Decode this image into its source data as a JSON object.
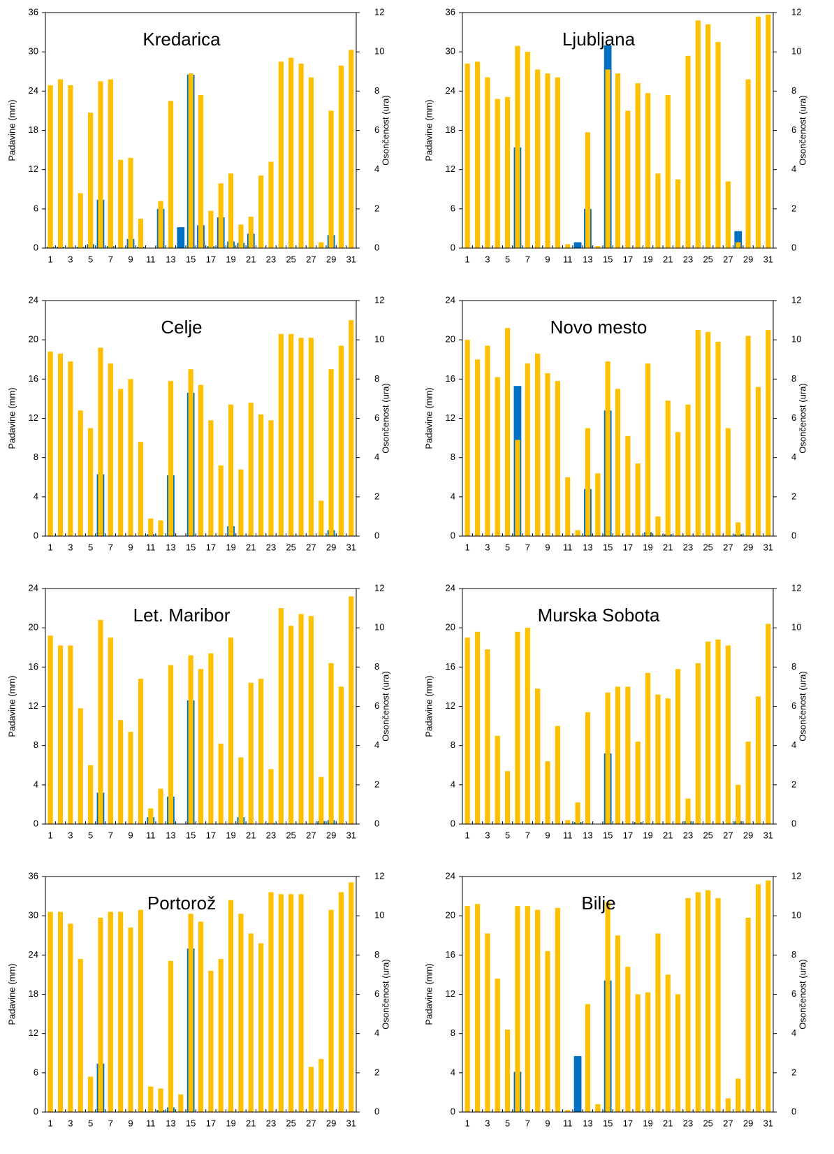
{
  "chart_data": [
    {
      "type": "bar",
      "title": "Kredarica",
      "ylabel": "Padavine (mm)",
      "y2label": "Osončenost (ura)",
      "categories": [
        1,
        null,
        3,
        null,
        5,
        null,
        7,
        null,
        9,
        null,
        11,
        null,
        13,
        null,
        15,
        null,
        17,
        null,
        19,
        null,
        21,
        null,
        23,
        null,
        25,
        null,
        27,
        null,
        29,
        null,
        31
      ],
      "ylim": [
        0,
        36
      ],
      "yticks": [
        0,
        6,
        12,
        18,
        24,
        30,
        36
      ],
      "y2lim": [
        0,
        12
      ],
      "y2ticks": [
        0,
        2,
        4,
        6,
        8,
        10,
        12
      ],
      "series": [
        {
          "color": "#0070c0",
          "values": [
            0.2,
            0.2,
            0.1,
            0.2,
            0.6,
            7.4,
            0.3,
            0,
            1.4,
            0.2,
            0,
            6,
            0,
            3.2,
            26.5,
            3.5,
            0.3,
            4.7,
            1,
            0.8,
            2.2,
            0,
            0,
            0,
            0,
            0,
            0,
            0,
            2,
            0,
            0
          ]
        },
        {
          "color": "#ffc000",
          "axis": "y2",
          "values": [
            8.3,
            8.6,
            8.3,
            2.8,
            6.9,
            8.5,
            8.6,
            4.5,
            4.6,
            1.5,
            0,
            2.4,
            7.5,
            0,
            8.9,
            7.8,
            1.9,
            3.3,
            3.8,
            1.2,
            1.6,
            3.7,
            4.4,
            9.5,
            9.7,
            9.4,
            8.7,
            0.3,
            7,
            9.3,
            10.1
          ]
        }
      ]
    },
    {
      "type": "bar",
      "title": "Ljubljana",
      "ylabel": "Padavine (mm)",
      "y2label": "Osončenost (ura)",
      "categories": [
        1,
        null,
        3,
        null,
        5,
        null,
        7,
        null,
        9,
        null,
        11,
        null,
        13,
        null,
        15,
        null,
        17,
        null,
        19,
        null,
        21,
        null,
        23,
        null,
        25,
        null,
        27,
        null,
        29,
        null,
        31
      ],
      "ylim": [
        0,
        36
      ],
      "yticks": [
        0,
        6,
        12,
        18,
        24,
        30,
        36
      ],
      "y2lim": [
        0,
        12
      ],
      "y2ticks": [
        0,
        2,
        4,
        6,
        8,
        10,
        12
      ],
      "series": [
        {
          "color": "#0070c0",
          "values": [
            0,
            0,
            0,
            0,
            0,
            15.4,
            0,
            0,
            0,
            0,
            0,
            0.9,
            6,
            0,
            31,
            0,
            0,
            0,
            0,
            0,
            0,
            0,
            0,
            0,
            0,
            0,
            0,
            2.6,
            0,
            0,
            0
          ]
        },
        {
          "color": "#ffc000",
          "axis": "y2",
          "values": [
            9.4,
            9.5,
            8.7,
            7.6,
            7.7,
            10.3,
            10,
            9.1,
            8.9,
            8.7,
            0.2,
            0,
            5.9,
            0.1,
            9.1,
            8.9,
            7,
            8.4,
            7.9,
            3.8,
            7.8,
            3.5,
            9.8,
            11.6,
            11.4,
            10.5,
            3.4,
            0.3,
            8.6,
            11.8,
            11.9
          ]
        }
      ]
    },
    {
      "type": "bar",
      "title": "Celje",
      "ylabel": "Padavine (mm)",
      "y2label": "Osončenost (ura)",
      "categories": [
        1,
        null,
        3,
        null,
        5,
        null,
        7,
        null,
        9,
        null,
        11,
        null,
        13,
        null,
        15,
        null,
        17,
        null,
        19,
        null,
        21,
        null,
        23,
        null,
        25,
        null,
        27,
        null,
        29,
        null,
        31
      ],
      "ylim": [
        0,
        24
      ],
      "yticks": [
        0,
        4,
        8,
        12,
        16,
        20,
        24
      ],
      "y2lim": [
        0,
        12
      ],
      "y2ticks": [
        0,
        2,
        4,
        6,
        8,
        10,
        12
      ],
      "series": [
        {
          "color": "#0070c0",
          "values": [
            0,
            0,
            0,
            0,
            0,
            6.3,
            0,
            0,
            0,
            0,
            0.2,
            0,
            6.2,
            0,
            14.6,
            0,
            0,
            0,
            1,
            0,
            0,
            0,
            0,
            0,
            0,
            0,
            0,
            0,
            0.6,
            0,
            0
          ]
        },
        {
          "color": "#ffc000",
          "axis": "y2",
          "values": [
            9.4,
            9.3,
            8.9,
            6.4,
            5.5,
            9.6,
            8.8,
            7.5,
            8,
            4.8,
            0.9,
            0.8,
            7.9,
            0,
            8.5,
            7.7,
            5.9,
            3.6,
            6.7,
            3.4,
            6.8,
            6.2,
            5.9,
            10.3,
            10.3,
            10.1,
            10.1,
            1.8,
            8.5,
            9.7,
            11
          ]
        }
      ]
    },
    {
      "type": "bar",
      "title": "Novo mesto",
      "ylabel": "Padavine (mm)",
      "y2label": "Osončenost (ura)",
      "categories": [
        1,
        null,
        3,
        null,
        5,
        null,
        7,
        null,
        9,
        null,
        11,
        null,
        13,
        null,
        15,
        null,
        17,
        null,
        19,
        null,
        21,
        null,
        23,
        null,
        25,
        null,
        27,
        null,
        29,
        null,
        31
      ],
      "ylim": [
        0,
        24
      ],
      "yticks": [
        0,
        4,
        8,
        12,
        16,
        20,
        24
      ],
      "y2lim": [
        0,
        12
      ],
      "y2ticks": [
        0,
        2,
        4,
        6,
        8,
        10,
        12
      ],
      "series": [
        {
          "color": "#0070c0",
          "values": [
            0,
            0,
            0,
            0,
            0,
            15.3,
            0,
            0,
            0,
            0,
            0,
            0,
            4.8,
            0,
            12.8,
            0,
            0,
            0,
            0.4,
            0,
            0.2,
            0,
            0,
            0,
            0,
            0,
            0,
            0.2,
            0,
            0,
            0
          ]
        },
        {
          "color": "#ffc000",
          "axis": "y2",
          "values": [
            10,
            9,
            9.7,
            8.1,
            10.6,
            4.9,
            8.8,
            9.3,
            8.3,
            7.9,
            3,
            0.3,
            5.5,
            3.2,
            8.9,
            7.5,
            5.1,
            3.7,
            8.8,
            1,
            6.9,
            5.3,
            6.7,
            10.5,
            10.4,
            9.9,
            5.5,
            0.7,
            10.2,
            7.6,
            10.5
          ]
        }
      ]
    },
    {
      "type": "bar",
      "title": "Let. Maribor",
      "ylabel": "Padavine (mm)",
      "y2label": "Osončenost (ura)",
      "categories": [
        1,
        null,
        3,
        null,
        5,
        null,
        7,
        null,
        9,
        null,
        11,
        null,
        13,
        null,
        15,
        null,
        17,
        null,
        19,
        null,
        21,
        null,
        23,
        null,
        25,
        null,
        27,
        null,
        29,
        null,
        31
      ],
      "ylim": [
        0,
        24
      ],
      "yticks": [
        0,
        4,
        8,
        12,
        16,
        20,
        24
      ],
      "y2lim": [
        0,
        12
      ],
      "y2ticks": [
        0,
        2,
        4,
        6,
        8,
        10,
        12
      ],
      "series": [
        {
          "color": "#0070c0",
          "values": [
            0,
            0,
            0,
            0,
            0,
            3.2,
            0,
            0,
            0,
            0,
            0.7,
            0,
            2.8,
            0,
            12.6,
            0,
            0,
            0,
            0,
            0.7,
            0,
            0,
            0.1,
            0,
            0,
            0,
            0,
            0.3,
            0.4,
            0,
            0
          ]
        },
        {
          "color": "#ffc000",
          "axis": "y2",
          "values": [
            9.6,
            9.1,
            9.1,
            5.9,
            3,
            10.4,
            9.5,
            5.3,
            4.7,
            7.4,
            0.8,
            1.8,
            8.1,
            0,
            8.6,
            7.9,
            8.7,
            4.1,
            9.5,
            3.4,
            7.2,
            7.4,
            2.8,
            11,
            10.1,
            10.7,
            10.6,
            2.4,
            8.2,
            7,
            11.6
          ]
        }
      ]
    },
    {
      "type": "bar",
      "title": "Murska Sobota",
      "ylabel": "Padavine (mm)",
      "y2label": "Osončenost (ura)",
      "categories": [
        1,
        null,
        3,
        null,
        5,
        null,
        7,
        null,
        9,
        null,
        11,
        null,
        13,
        null,
        15,
        null,
        17,
        null,
        19,
        null,
        21,
        null,
        23,
        null,
        25,
        null,
        27,
        null,
        29,
        null,
        31
      ],
      "ylim": [
        0,
        24
      ],
      "yticks": [
        0,
        4,
        8,
        12,
        16,
        20,
        24
      ],
      "y2lim": [
        0,
        12
      ],
      "y2ticks": [
        0,
        2,
        4,
        6,
        8,
        10,
        12
      ],
      "series": [
        {
          "color": "#0070c0",
          "values": [
            0,
            0,
            0,
            0,
            0,
            0,
            0,
            0,
            0,
            0,
            0,
            0.2,
            0,
            0,
            7.2,
            0,
            0,
            0.2,
            0,
            0,
            0,
            0,
            0.3,
            0,
            0,
            0,
            0,
            0.3,
            0,
            0,
            0
          ]
        },
        {
          "color": "#ffc000",
          "axis": "y2",
          "values": [
            9.5,
            9.8,
            8.9,
            4.5,
            2.7,
            9.8,
            10,
            6.9,
            3.2,
            5,
            0.2,
            1.1,
            5.7,
            0,
            6.7,
            7,
            7,
            4.2,
            7.7,
            6.6,
            6.4,
            7.9,
            1.3,
            8.2,
            9.3,
            9.4,
            9.1,
            2,
            4.2,
            6.5,
            10.2
          ]
        }
      ]
    },
    {
      "type": "bar",
      "title": "Portorož",
      "ylabel": "Padavine (mm)",
      "y2label": "Osončenost (ura)",
      "categories": [
        1,
        null,
        3,
        null,
        5,
        null,
        7,
        null,
        9,
        null,
        11,
        null,
        13,
        null,
        15,
        null,
        17,
        null,
        19,
        null,
        21,
        null,
        23,
        null,
        25,
        null,
        27,
        null,
        29,
        null,
        31
      ],
      "ylim": [
        0,
        36
      ],
      "yticks": [
        0,
        6,
        12,
        18,
        24,
        30,
        36
      ],
      "y2lim": [
        0,
        12
      ],
      "y2ticks": [
        0,
        2,
        4,
        6,
        8,
        10,
        12
      ],
      "series": [
        {
          "color": "#0070c0",
          "values": [
            0,
            0,
            0,
            0,
            0,
            7.4,
            0,
            0,
            0,
            0,
            0,
            0.3,
            0.7,
            0,
            25,
            0,
            0,
            0,
            0,
            0,
            0,
            0,
            0,
            0,
            0,
            0,
            0,
            0,
            0,
            0,
            0
          ]
        },
        {
          "color": "#ffc000",
          "axis": "y2",
          "values": [
            10.2,
            10.2,
            9.6,
            7.8,
            1.8,
            9.9,
            10.2,
            10.2,
            9.4,
            10.3,
            1.3,
            1.2,
            7.7,
            0.9,
            10.1,
            9.7,
            7.2,
            7.8,
            10.8,
            10.1,
            9.1,
            8.6,
            11.2,
            11.1,
            11.1,
            11.1,
            2.3,
            2.7,
            10.3,
            11.2,
            11.7
          ]
        }
      ]
    },
    {
      "type": "bar",
      "title": "Bilje",
      "ylabel": "Padavine (mm)",
      "y2label": "Osončenost (ura)",
      "categories": [
        1,
        null,
        3,
        null,
        5,
        null,
        7,
        null,
        9,
        null,
        11,
        null,
        13,
        null,
        15,
        null,
        17,
        null,
        19,
        null,
        21,
        null,
        23,
        null,
        25,
        null,
        27,
        null,
        29,
        null,
        31
      ],
      "ylim": [
        0,
        24
      ],
      "yticks": [
        0,
        4,
        8,
        12,
        16,
        20,
        24
      ],
      "y2lim": [
        0,
        12
      ],
      "y2ticks": [
        0,
        2,
        4,
        6,
        8,
        10,
        12
      ],
      "series": [
        {
          "color": "#0070c0",
          "values": [
            0,
            0,
            0,
            0,
            0,
            4.1,
            0,
            0,
            0,
            0,
            0,
            5.7,
            0,
            0,
            13.4,
            0,
            0,
            0,
            0,
            0,
            0,
            0,
            0,
            0,
            0,
            0,
            0,
            0,
            0,
            0,
            0
          ]
        },
        {
          "color": "#ffc000",
          "axis": "y2",
          "values": [
            10.5,
            10.6,
            9.1,
            6.8,
            4.2,
            10.5,
            10.5,
            10.3,
            8.2,
            10.4,
            0.1,
            0,
            5.5,
            0.4,
            10.7,
            9,
            7.4,
            6,
            6.1,
            9.1,
            7,
            6,
            10.9,
            11.2,
            11.3,
            10.9,
            0.7,
            1.7,
            9.9,
            11.6,
            11.8
          ]
        }
      ]
    }
  ]
}
